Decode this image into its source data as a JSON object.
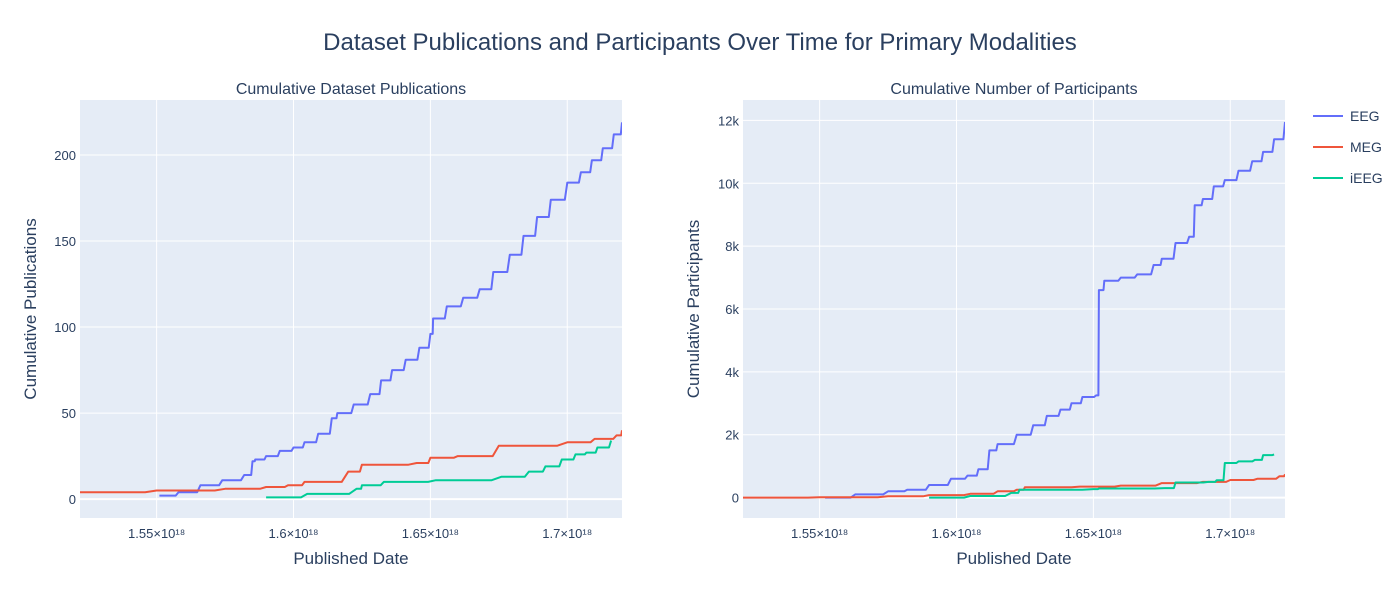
{
  "title": "Dataset Publications and Participants Over Time for Primary Modalities",
  "colors": {
    "EEG": "#636efa",
    "MEG": "#ef553b",
    "iEEG": "#00cc96",
    "plot_bg": "#e5ecf6",
    "grid": "#ffffff",
    "text": "#2a3f5f"
  },
  "legend": {
    "placement": "top-right",
    "items": [
      "EEG",
      "MEG",
      "iEEG"
    ]
  },
  "chart_data": [
    {
      "type": "line",
      "subtitle": "Cumulative Dataset Publications",
      "xlabel": "Published Date",
      "ylabel": "Cumulative Publications",
      "xlim": [
        1.522e+18,
        1.72e+18
      ],
      "ylim": [
        -11,
        232
      ],
      "xticks": [
        1.55e+18,
        1.6e+18,
        1.65e+18,
        1.7e+18
      ],
      "xtick_labels": [
        "1.55×10¹⁸",
        "1.6×10¹⁸",
        "1.65×10¹⁸",
        "1.7×10¹⁸"
      ],
      "yticks": [
        0,
        50,
        100,
        150,
        200
      ],
      "ytick_labels": [
        "0",
        "50",
        "100",
        "150",
        "200"
      ],
      "grid": true,
      "series": [
        {
          "name": "EEG",
          "x": [
            1.551e+18,
            1.558e+18,
            1.566e+18,
            1.574e+18,
            1.582e+18,
            1.585e+18,
            1.586e+18,
            1.59e+18,
            1.595e+18,
            1.6e+18,
            1.604e+18,
            1.609e+18,
            1.614e+18,
            1.616e+18,
            1.622e+18,
            1.628e+18,
            1.632e+18,
            1.636e+18,
            1.641e+18,
            1.646e+18,
            1.65e+18,
            1.651e+18,
            1.656e+18,
            1.662e+18,
            1.668e+18,
            1.673e+18,
            1.679e+18,
            1.684e+18,
            1.689e+18,
            1.694e+18,
            1.7e+18,
            1.705e+18,
            1.709e+18,
            1.713e+18,
            1.717e+18,
            1.72e+18
          ],
          "y": [
            2,
            4,
            8,
            11,
            14,
            22,
            23,
            25,
            28,
            30,
            33,
            38,
            47,
            50,
            55,
            61,
            69,
            75,
            81,
            88,
            96,
            105,
            112,
            117,
            122,
            132,
            142,
            153,
            164,
            174,
            184,
            190,
            197,
            204,
            212,
            219
          ]
        },
        {
          "name": "MEG",
          "x": [
            1.522e+18,
            1.55e+18,
            1.575e+18,
            1.59e+18,
            1.598e+18,
            1.604e+18,
            1.62e+18,
            1.625e+18,
            1.645e+18,
            1.65e+18,
            1.66e+18,
            1.675e+18,
            1.7e+18,
            1.71e+18,
            1.718e+18,
            1.72e+18
          ],
          "y": [
            4,
            5,
            6,
            7,
            8,
            10,
            16,
            20,
            21,
            24,
            25,
            31,
            33,
            35,
            37,
            40
          ]
        },
        {
          "name": "iEEG",
          "x": [
            1.59e+18,
            1.605e+18,
            1.623e+18,
            1.625e+18,
            1.633e+18,
            1.652e+18,
            1.676e+18,
            1.686e+18,
            1.692e+18,
            1.698e+18,
            1.703e+18,
            1.707e+18,
            1.711e+18,
            1.716e+18
          ],
          "y": [
            1,
            3,
            6,
            8,
            10,
            11,
            13,
            16,
            19,
            23,
            26,
            27,
            30,
            34
          ]
        }
      ]
    },
    {
      "type": "line",
      "subtitle": "Cumulative Number of Participants",
      "xlabel": "Published Date",
      "ylabel": "Cumulative Participants",
      "xlim": [
        1.522e+18,
        1.72e+18
      ],
      "ylim": [
        -650,
        12650
      ],
      "xticks": [
        1.55e+18,
        1.6e+18,
        1.65e+18,
        1.7e+18
      ],
      "xtick_labels": [
        "1.55×10¹⁸",
        "1.6×10¹⁸",
        "1.65×10¹⁸",
        "1.7×10¹⁸"
      ],
      "yticks": [
        0,
        2000,
        4000,
        6000,
        8000,
        10000,
        12000
      ],
      "ytick_labels": [
        "0",
        "2k",
        "4k",
        "6k",
        "8k",
        "10k",
        "12k"
      ],
      "grid": true,
      "series": [
        {
          "name": "EEG",
          "x": [
            1.552e+18,
            1.563e+18,
            1.575e+18,
            1.582e+18,
            1.59e+18,
            1.598e+18,
            1.604e+18,
            1.608e+18,
            1.612e+18,
            1.615e+18,
            1.622e+18,
            1.628e+18,
            1.633e+18,
            1.638e+18,
            1.642e+18,
            1.646e+18,
            1.651e+18,
            1.652e+18,
            1.654e+18,
            1.66e+18,
            1.666e+18,
            1.672e+18,
            1.675e+18,
            1.68e+18,
            1.685e+18,
            1.687e+18,
            1.69e+18,
            1.694e+18,
            1.698e+18,
            1.703e+18,
            1.708e+18,
            1.712e+18,
            1.716e+18,
            1.72e+18
          ],
          "y": [
            0,
            100,
            200,
            250,
            400,
            600,
            700,
            900,
            1500,
            1700,
            2000,
            2300,
            2600,
            2800,
            3000,
            3200,
            3250,
            6600,
            6900,
            7000,
            7100,
            7400,
            7600,
            8100,
            8300,
            9300,
            9500,
            9900,
            10100,
            10400,
            10700,
            11000,
            11400,
            11950
          ]
        },
        {
          "name": "MEG",
          "x": [
            1.522e+18,
            1.55e+18,
            1.575e+18,
            1.59e+18,
            1.605e+18,
            1.615e+18,
            1.622e+18,
            1.625e+18,
            1.645e+18,
            1.66e+18,
            1.675e+18,
            1.69e+18,
            1.7e+18,
            1.71e+18,
            1.718e+18,
            1.72e+18
          ],
          "y": [
            0,
            10,
            40,
            80,
            120,
            200,
            250,
            330,
            350,
            380,
            460,
            500,
            560,
            600,
            680,
            740
          ]
        },
        {
          "name": "iEEG",
          "x": [
            1.59e+18,
            1.605e+18,
            1.62e+18,
            1.623e+18,
            1.65e+18,
            1.652e+18,
            1.676e+18,
            1.68e+18,
            1.692e+18,
            1.695e+18,
            1.698e+18,
            1.703e+18,
            1.709e+18,
            1.712e+18,
            1.716e+18
          ],
          "y": [
            0,
            50,
            150,
            250,
            270,
            290,
            300,
            480,
            500,
            550,
            1100,
            1150,
            1200,
            1350,
            1370
          ]
        }
      ]
    }
  ]
}
